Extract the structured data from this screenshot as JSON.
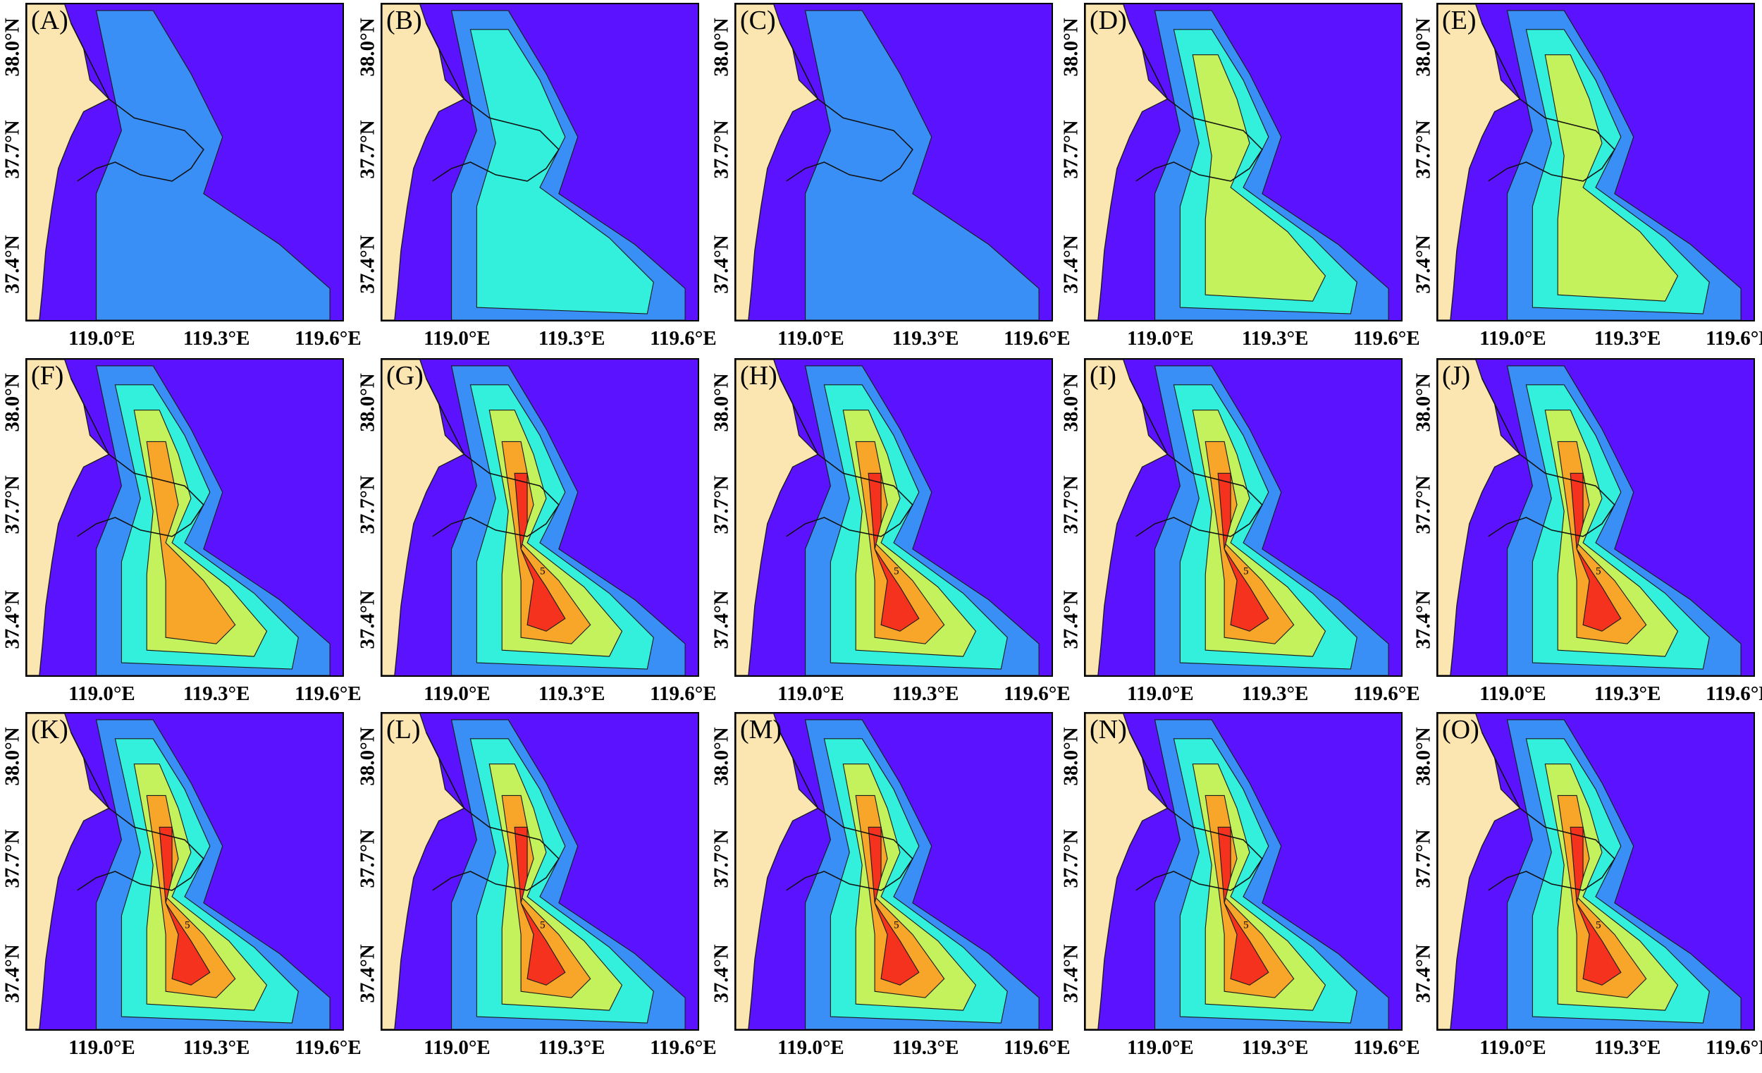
{
  "figure": {
    "x_ticks": [
      "119.0°E",
      "119.3°E",
      "119.6°E"
    ],
    "y_ticks": [
      "38.0°N",
      "37.7°N",
      "37.4°N"
    ],
    "colors": {
      "land": "#fbe6b2",
      "level_0": "#5a12ff",
      "level_1": "#3a8ff7",
      "level_2": "#33f0dc",
      "level_3": "#c4f25c",
      "level_4": "#f7a62a",
      "level_5": "#f5321e"
    },
    "contour_label": "5",
    "panels": [
      {
        "label": "(A)",
        "level": 1
      },
      {
        "label": "(B)",
        "level": 2
      },
      {
        "label": "(C)",
        "level": 1
      },
      {
        "label": "(D)",
        "level": 3
      },
      {
        "label": "(E)",
        "level": 3
      },
      {
        "label": "(F)",
        "level": 4
      },
      {
        "label": "(G)",
        "level": 5
      },
      {
        "label": "(H)",
        "level": 5
      },
      {
        "label": "(I)",
        "level": 5
      },
      {
        "label": "(J)",
        "level": 5
      },
      {
        "label": "(K)",
        "level": 5
      },
      {
        "label": "(L)",
        "level": 5
      },
      {
        "label": "(M)",
        "level": 5
      },
      {
        "label": "(N)",
        "level": 5
      },
      {
        "label": "(O)",
        "level": 5
      }
    ]
  }
}
